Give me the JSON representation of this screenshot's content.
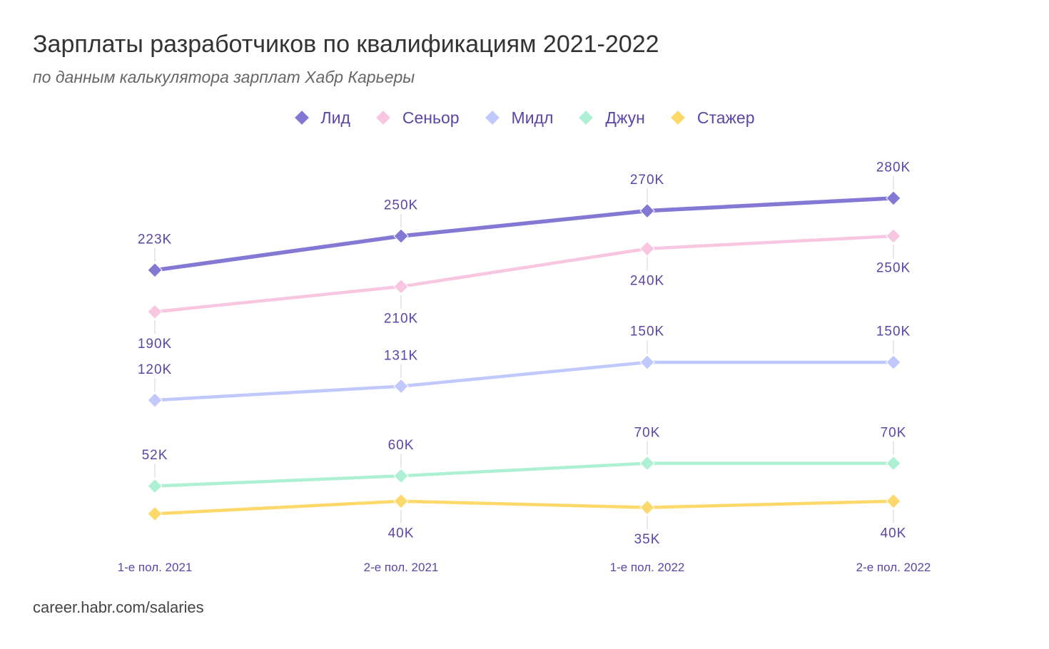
{
  "chart_data": {
    "type": "line",
    "title": "Зарплаты разработчиков по квалификациям 2021-2022",
    "subtitle": "по данным калькулятора зарплат Хабр Карьеры",
    "categories": [
      "1-е пол. 2021",
      "2-е пол. 2021",
      "1-е пол. 2022",
      "2-е пол. 2022"
    ],
    "xlabel": "",
    "ylabel": "",
    "ylim": [
      0,
      300
    ],
    "grid": false,
    "legend_position": "top",
    "label_color": "#5b46a6",
    "series": [
      {
        "name": "Лид",
        "color": "#8478d5",
        "values": [
          223,
          250,
          270,
          280
        ],
        "labels": [
          "223K",
          "250K",
          "270K",
          "280K"
        ]
      },
      {
        "name": "Сеньор",
        "color": "#f8c6e0",
        "values": [
          190,
          210,
          240,
          250
        ],
        "labels": [
          "190K",
          "210K",
          "240K",
          "250K"
        ]
      },
      {
        "name": "Мидл",
        "color": "#c1c8fb",
        "values": [
          120,
          131,
          150,
          150
        ],
        "labels": [
          "120K",
          "131K",
          "150K",
          "150K"
        ]
      },
      {
        "name": "Джун",
        "color": "#aef0d3",
        "values": [
          52,
          60,
          70,
          70
        ],
        "labels": [
          "52K",
          "60K",
          "70K",
          "70K"
        ]
      },
      {
        "name": "Стажер",
        "color": "#fdd96b",
        "values": [
          30,
          40,
          35,
          40
        ],
        "labels": [
          null,
          "40K",
          "35K",
          "40K"
        ]
      }
    ]
  },
  "source": "career.habr.com/salaries"
}
